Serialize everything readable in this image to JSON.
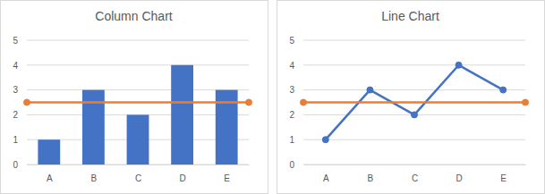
{
  "chart_data": [
    {
      "type": "bar",
      "title": "Column Chart",
      "categories": [
        "A",
        "B",
        "C",
        "D",
        "E"
      ],
      "xlim": [
        0.5,
        5.5
      ],
      "ylim": [
        0,
        5
      ],
      "yticks": [
        0,
        1,
        2,
        3,
        4,
        5
      ],
      "grid": true,
      "series": [
        {
          "type": "bar",
          "color": "#4472c4",
          "values": [
            1,
            3,
            2,
            4,
            3
          ]
        },
        {
          "type": "line",
          "color": "#ed7d31",
          "marker": "circle",
          "x": [
            0.5,
            5.5
          ],
          "values": [
            2.5,
            2.5
          ]
        }
      ]
    },
    {
      "type": "line",
      "title": "Line Chart",
      "categories": [
        "A",
        "B",
        "C",
        "D",
        "E"
      ],
      "xlim": [
        0.5,
        5.5
      ],
      "ylim": [
        0,
        5
      ],
      "yticks": [
        0,
        1,
        2,
        3,
        4,
        5
      ],
      "grid": true,
      "series": [
        {
          "type": "line",
          "color": "#4472c4",
          "marker": "circle",
          "values": [
            1,
            3,
            2,
            4,
            3
          ]
        },
        {
          "type": "line",
          "color": "#ed7d31",
          "marker": "circle",
          "x": [
            0.5,
            5.5
          ],
          "values": [
            2.5,
            2.5
          ]
        }
      ]
    }
  ]
}
